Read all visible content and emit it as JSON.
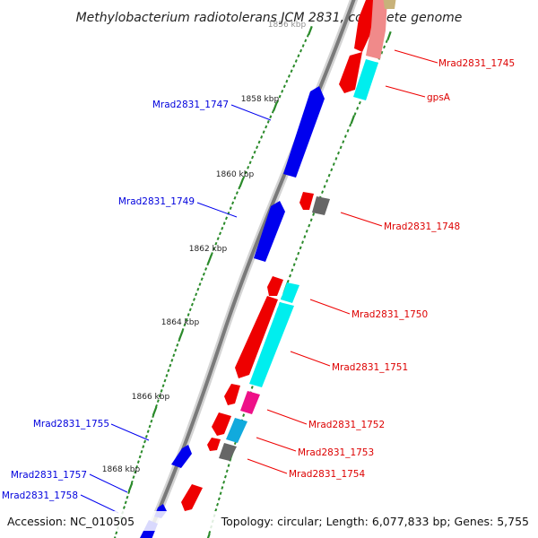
{
  "title": "Methylobacterium radiotolerans JCM 2831, complete genome",
  "footer": {
    "accession": "Accession: NC_010505",
    "summary": "Topology: circular; Length: 6,077,833 bp; Genes: 5,755"
  },
  "colors": {
    "forward_gene": "#0000ee",
    "reverse_gene": "#ee0000",
    "cds_cyan": "#00eeee",
    "cds_magenta": "#ee1188",
    "cds_gray": "#777777",
    "backbone": "#777777",
    "tick": "#2a8a2a"
  },
  "kbp_marks": [
    {
      "text": "1856 kbp",
      "faded": true
    },
    {
      "text": "1858 kbp"
    },
    {
      "text": "1860 kbp"
    },
    {
      "text": "1862 kbp"
    },
    {
      "text": "1864 kbp"
    },
    {
      "text": "1866 kbp"
    },
    {
      "text": "1868 kbp"
    }
  ],
  "gene_labels": [
    {
      "text": "Mrad2831_1745",
      "strand": "reverse"
    },
    {
      "text": "gpsA",
      "strand": "reverse"
    },
    {
      "text": "Mrad2831_1747",
      "strand": "forward"
    },
    {
      "text": "Mrad2831_1748",
      "strand": "reverse"
    },
    {
      "text": "Mrad2831_1749",
      "strand": "forward"
    },
    {
      "text": "Mrad2831_1750",
      "strand": "reverse"
    },
    {
      "text": "Mrad2831_1751",
      "strand": "reverse"
    },
    {
      "text": "Mrad2831_1752",
      "strand": "reverse"
    },
    {
      "text": "Mrad2831_1753",
      "strand": "reverse"
    },
    {
      "text": "Mrad2831_1754",
      "strand": "reverse"
    },
    {
      "text": "Mrad2831_1755",
      "strand": "forward"
    },
    {
      "text": "Mrad2831_1757",
      "strand": "forward"
    },
    {
      "text": "Mrad2831_1758",
      "strand": "forward"
    }
  ]
}
